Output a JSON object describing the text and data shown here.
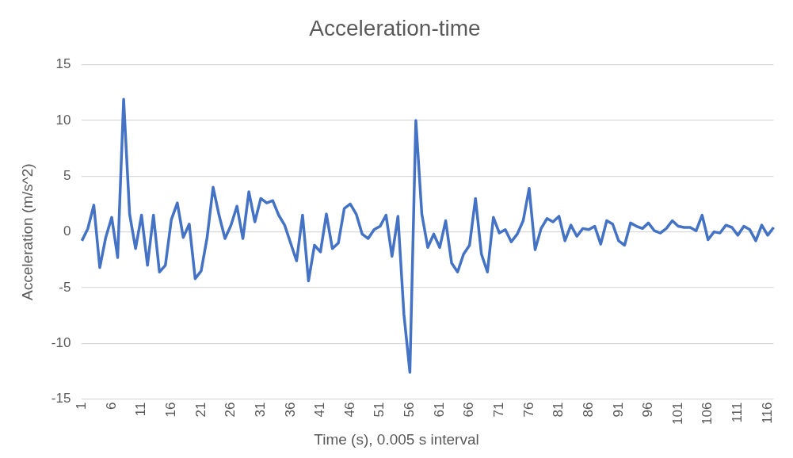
{
  "chart_data": {
    "type": "line",
    "title": "Acceleration-time",
    "xlabel": "Time (s), 0.005 s interval",
    "ylabel": "Acceleration (m/s^2)",
    "categories": [
      "1",
      null,
      null,
      null,
      null,
      "6",
      null,
      null,
      null,
      null,
      "11",
      null,
      null,
      null,
      null,
      "16",
      null,
      null,
      null,
      null,
      "21",
      null,
      null,
      null,
      null,
      "26",
      null,
      null,
      null,
      null,
      "31",
      null,
      null,
      null,
      null,
      "36",
      null,
      null,
      null,
      null,
      "41",
      null,
      null,
      null,
      null,
      "46",
      null,
      null,
      null,
      null,
      "51",
      null,
      null,
      null,
      null,
      "56",
      null,
      null,
      null,
      null,
      "61",
      null,
      null,
      null,
      null,
      "66",
      null,
      null,
      null,
      null,
      "71",
      null,
      null,
      null,
      null,
      "76",
      null,
      null,
      null,
      null,
      "81",
      null,
      null,
      null,
      null,
      "86",
      null,
      null,
      null,
      null,
      "91",
      null,
      null,
      null,
      null,
      "96",
      null,
      null,
      null,
      null,
      "101",
      null,
      null,
      null,
      null,
      "106",
      null,
      null,
      null,
      null,
      "111",
      null,
      null,
      null,
      null,
      "116",
      null
    ],
    "series": [
      {
        "color": "#4472c4",
        "values": [
          -0.8,
          0.3,
          2.4,
          -3.2,
          -0.5,
          1.3,
          -2.3,
          11.9,
          1.6,
          -1.5,
          1.5,
          -3.0,
          1.5,
          -3.6,
          -3.0,
          1.1,
          2.6,
          -0.5,
          0.7,
          -4.2,
          -3.5,
          -0.5,
          4.0,
          1.5,
          -0.6,
          0.6,
          2.3,
          -0.6,
          3.6,
          0.9,
          3.0,
          2.6,
          2.8,
          1.5,
          0.6,
          -1.0,
          -2.6,
          1.5,
          -4.4,
          -1.2,
          -1.8,
          1.6,
          -1.5,
          -1.0,
          2.1,
          2.5,
          1.6,
          -0.2,
          -0.6,
          0.2,
          0.5,
          1.5,
          -2.2,
          1.4,
          -7.4,
          -12.6,
          10.0,
          1.6,
          -1.4,
          -0.2,
          -1.4,
          1.0,
          -2.8,
          -3.6,
          -2.0,
          -1.2,
          3.0,
          -2.0,
          -3.6,
          1.3,
          -0.1,
          0.2,
          -0.9,
          -0.2,
          1.0,
          3.9,
          -1.6,
          0.3,
          1.2,
          0.9,
          1.4,
          -0.8,
          0.6,
          -0.4,
          0.3,
          0.2,
          0.5,
          -1.1,
          1.0,
          0.7,
          -0.8,
          -1.2,
          0.8,
          0.5,
          0.3,
          0.8,
          0.1,
          -0.1,
          0.3,
          1.0,
          0.5,
          0.4,
          0.4,
          0.1,
          1.5,
          -0.7,
          0.0,
          -0.1,
          0.6,
          0.4,
          -0.3,
          0.5,
          0.2,
          -0.8,
          0.6,
          -0.3,
          0.4
        ]
      }
    ],
    "ylim": [
      -15,
      15
    ],
    "yticks": [
      -15,
      -10,
      -5,
      0,
      5,
      10,
      15
    ],
    "grid": "y",
    "legend": false,
    "marker": "none",
    "line_style": "solid"
  }
}
